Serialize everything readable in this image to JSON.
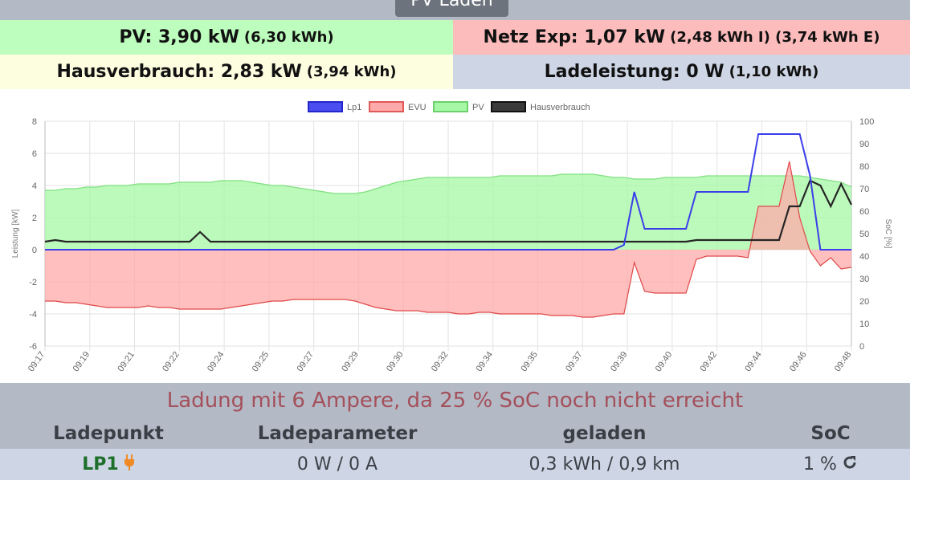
{
  "header": {
    "mode_button": "PV Laden"
  },
  "summary": {
    "pv_label": "PV: 3,90 kW",
    "pv_detail": "(6,30 kWh)",
    "netz_label": "Netz Exp: 1,07 kW",
    "netz_detail": "(2,48 kWh I) (3,74 kWh E)",
    "haus_label": "Hausverbrauch: 2,83 kW",
    "haus_detail": "(3,94 kWh)",
    "lade_label": "Ladeleistung: 0 W",
    "lade_detail": "(1,10 kWh)"
  },
  "chart_data": {
    "type": "area",
    "ylabel_left": "Leistung [kW]",
    "ylabel_right": "SoC [%]",
    "ylim_left": [
      -6,
      8
    ],
    "ylim_right": [
      0,
      100
    ],
    "yticks_left": [
      "8",
      "6",
      "4",
      "2",
      "0",
      "-2",
      "-4",
      "-6"
    ],
    "yticks_right": [
      "100",
      "90",
      "80",
      "70",
      "60",
      "50",
      "40",
      "30",
      "20",
      "10",
      "0"
    ],
    "xticks": [
      "09:17",
      "09:19",
      "09:21",
      "09:22",
      "09:24",
      "09:25",
      "09:27",
      "09:29",
      "09:30",
      "09:32",
      "09:34",
      "09:35",
      "09:37",
      "09:39",
      "09:40",
      "09:42",
      "09:44",
      "09:46",
      "09:48"
    ],
    "legend_position": "top",
    "colors": {
      "Lp1": "#3a3ee8",
      "EVU": "#ff9a9a",
      "PV": "#9cf79c",
      "Hausverbrauch": "#2a2a2a"
    },
    "series": [
      {
        "name": "Lp1",
        "values": [
          0,
          0,
          0,
          0,
          0,
          0,
          0,
          0,
          0,
          0,
          0,
          0,
          0,
          0,
          0,
          0,
          0,
          0,
          0,
          0,
          0,
          0,
          0,
          0,
          0,
          0,
          0,
          0,
          0,
          0,
          0,
          0,
          0,
          0,
          0,
          0,
          0,
          0,
          0,
          0,
          0,
          0,
          0,
          0,
          0,
          0,
          0,
          0,
          0,
          0,
          0,
          0,
          0,
          0,
          0,
          0,
          0.3,
          3.6,
          1.3,
          1.3,
          1.3,
          1.3,
          1.3,
          3.6,
          3.6,
          3.6,
          3.6,
          3.6,
          3.6,
          7.2,
          7.2,
          7.2,
          7.2,
          7.2,
          4.6,
          0,
          0,
          0,
          0
        ]
      },
      {
        "name": "EVU",
        "values": [
          -3.2,
          -3.2,
          -3.3,
          -3.3,
          -3.4,
          -3.5,
          -3.6,
          -3.6,
          -3.6,
          -3.6,
          -3.5,
          -3.6,
          -3.6,
          -3.7,
          -3.7,
          -3.7,
          -3.7,
          -3.7,
          -3.6,
          -3.5,
          -3.4,
          -3.3,
          -3.2,
          -3.2,
          -3.1,
          -3.1,
          -3.1,
          -3.1,
          -3.1,
          -3.1,
          -3.2,
          -3.4,
          -3.6,
          -3.7,
          -3.8,
          -3.8,
          -3.8,
          -3.9,
          -3.9,
          -3.9,
          -4.0,
          -4.0,
          -3.9,
          -3.9,
          -4.0,
          -4.0,
          -4.0,
          -4.0,
          -4.0,
          -4.1,
          -4.1,
          -4.1,
          -4.2,
          -4.2,
          -4.1,
          -4.0,
          -4.0,
          -0.8,
          -2.6,
          -2.7,
          -2.7,
          -2.7,
          -2.7,
          -0.6,
          -0.4,
          -0.4,
          -0.4,
          -0.4,
          -0.5,
          2.7,
          2.7,
          2.7,
          5.5,
          2.0,
          -0.1,
          -1.0,
          -0.5,
          -1.2,
          -1.1
        ]
      },
      {
        "name": "PV",
        "values": [
          3.7,
          3.7,
          3.8,
          3.8,
          3.9,
          3.9,
          4.0,
          4.0,
          4.0,
          4.1,
          4.1,
          4.1,
          4.1,
          4.2,
          4.2,
          4.2,
          4.2,
          4.3,
          4.3,
          4.3,
          4.2,
          4.1,
          4.0,
          4.0,
          3.9,
          3.8,
          3.7,
          3.6,
          3.5,
          3.5,
          3.5,
          3.6,
          3.8,
          4.0,
          4.2,
          4.3,
          4.4,
          4.5,
          4.5,
          4.5,
          4.5,
          4.5,
          4.5,
          4.5,
          4.6,
          4.6,
          4.6,
          4.6,
          4.6,
          4.6,
          4.7,
          4.7,
          4.7,
          4.7,
          4.6,
          4.5,
          4.5,
          4.4,
          4.4,
          4.4,
          4.5,
          4.5,
          4.5,
          4.5,
          4.6,
          4.6,
          4.6,
          4.6,
          4.6,
          4.6,
          4.6,
          4.6,
          4.6,
          4.6,
          4.5,
          4.4,
          4.3,
          4.2,
          3.9
        ]
      },
      {
        "name": "Hausverbrauch",
        "values": [
          0.5,
          0.6,
          0.5,
          0.5,
          0.5,
          0.5,
          0.5,
          0.5,
          0.5,
          0.5,
          0.5,
          0.5,
          0.5,
          0.5,
          0.5,
          1.1,
          0.5,
          0.5,
          0.5,
          0.5,
          0.5,
          0.5,
          0.5,
          0.5,
          0.5,
          0.5,
          0.5,
          0.5,
          0.5,
          0.5,
          0.5,
          0.5,
          0.5,
          0.5,
          0.5,
          0.5,
          0.5,
          0.5,
          0.5,
          0.5,
          0.5,
          0.5,
          0.5,
          0.5,
          0.5,
          0.5,
          0.5,
          0.5,
          0.5,
          0.5,
          0.5,
          0.5,
          0.5,
          0.5,
          0.5,
          0.5,
          0.5,
          0.5,
          0.5,
          0.5,
          0.5,
          0.5,
          0.5,
          0.6,
          0.6,
          0.6,
          0.6,
          0.6,
          0.6,
          0.6,
          0.6,
          0.6,
          2.7,
          2.7,
          4.3,
          4.0,
          2.7,
          4.1,
          2.8
        ]
      }
    ]
  },
  "status_message": "Ladung mit 6 Ampere, da 25 % SoC noch nicht erreicht",
  "table": {
    "headers": [
      "Ladepunkt",
      "Ladeparameter",
      "geladen",
      "SoC"
    ],
    "rows": [
      {
        "name": "LP1",
        "param": "0 W / 0 A",
        "charged": "0,3 kWh / 0,9 km",
        "soc": "1 %"
      }
    ]
  }
}
